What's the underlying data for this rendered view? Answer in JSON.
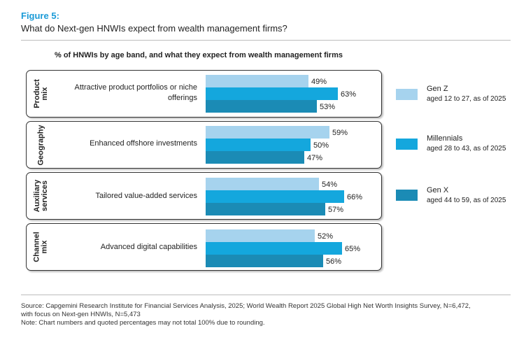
{
  "figure_label": "Figure 5:",
  "figure_title": "What do Next-gen HNWIs expect from wealth management firms?",
  "chart_data": {
    "type": "bar",
    "orientation": "horizontal",
    "title": "% of HNWIs by age band, and what they expect from wealth management firms",
    "groups": [
      {
        "group": "Product mix",
        "category": "Attractive product portfolios or niche offerings"
      },
      {
        "group": "Geography",
        "category": "Enhanced offshore investments"
      },
      {
        "group": "Auxiliary services",
        "category": "Tailored value-added services"
      },
      {
        "group": "Channel mix",
        "category": "Advanced digital capabilities"
      }
    ],
    "categories": [
      "Attractive product portfolios or niche offerings",
      "Enhanced offshore investments",
      "Tailored value-added services",
      "Advanced digital capabilities"
    ],
    "series": [
      {
        "name": "Gen Z",
        "description": "aged 12 to 27, as of 2025",
        "color": "#a6d3ee",
        "values": [
          49,
          59,
          54,
          52
        ]
      },
      {
        "name": "Millennials",
        "description": "aged 28 to 43, as of 2025",
        "color": "#14a7dd",
        "values": [
          63,
          50,
          66,
          65
        ]
      },
      {
        "name": "Gen X",
        "description": "aged 44 to 59, as of 2025",
        "color": "#1b8bb5",
        "values": [
          53,
          47,
          57,
          56
        ]
      }
    ],
    "value_suffix": "%",
    "xlim": [
      0,
      100
    ]
  },
  "source_lines": [
    "Source: Capgemini Research Institute for Financial Services Analysis, 2025; World Wealth Report 2025 Global High Net Worth Insights Survey, N=6,472,",
    "with focus on Next-gen HNWIs, N=5,473",
    "Note: Chart numbers and quoted percentages may not total 100% due to rounding."
  ]
}
